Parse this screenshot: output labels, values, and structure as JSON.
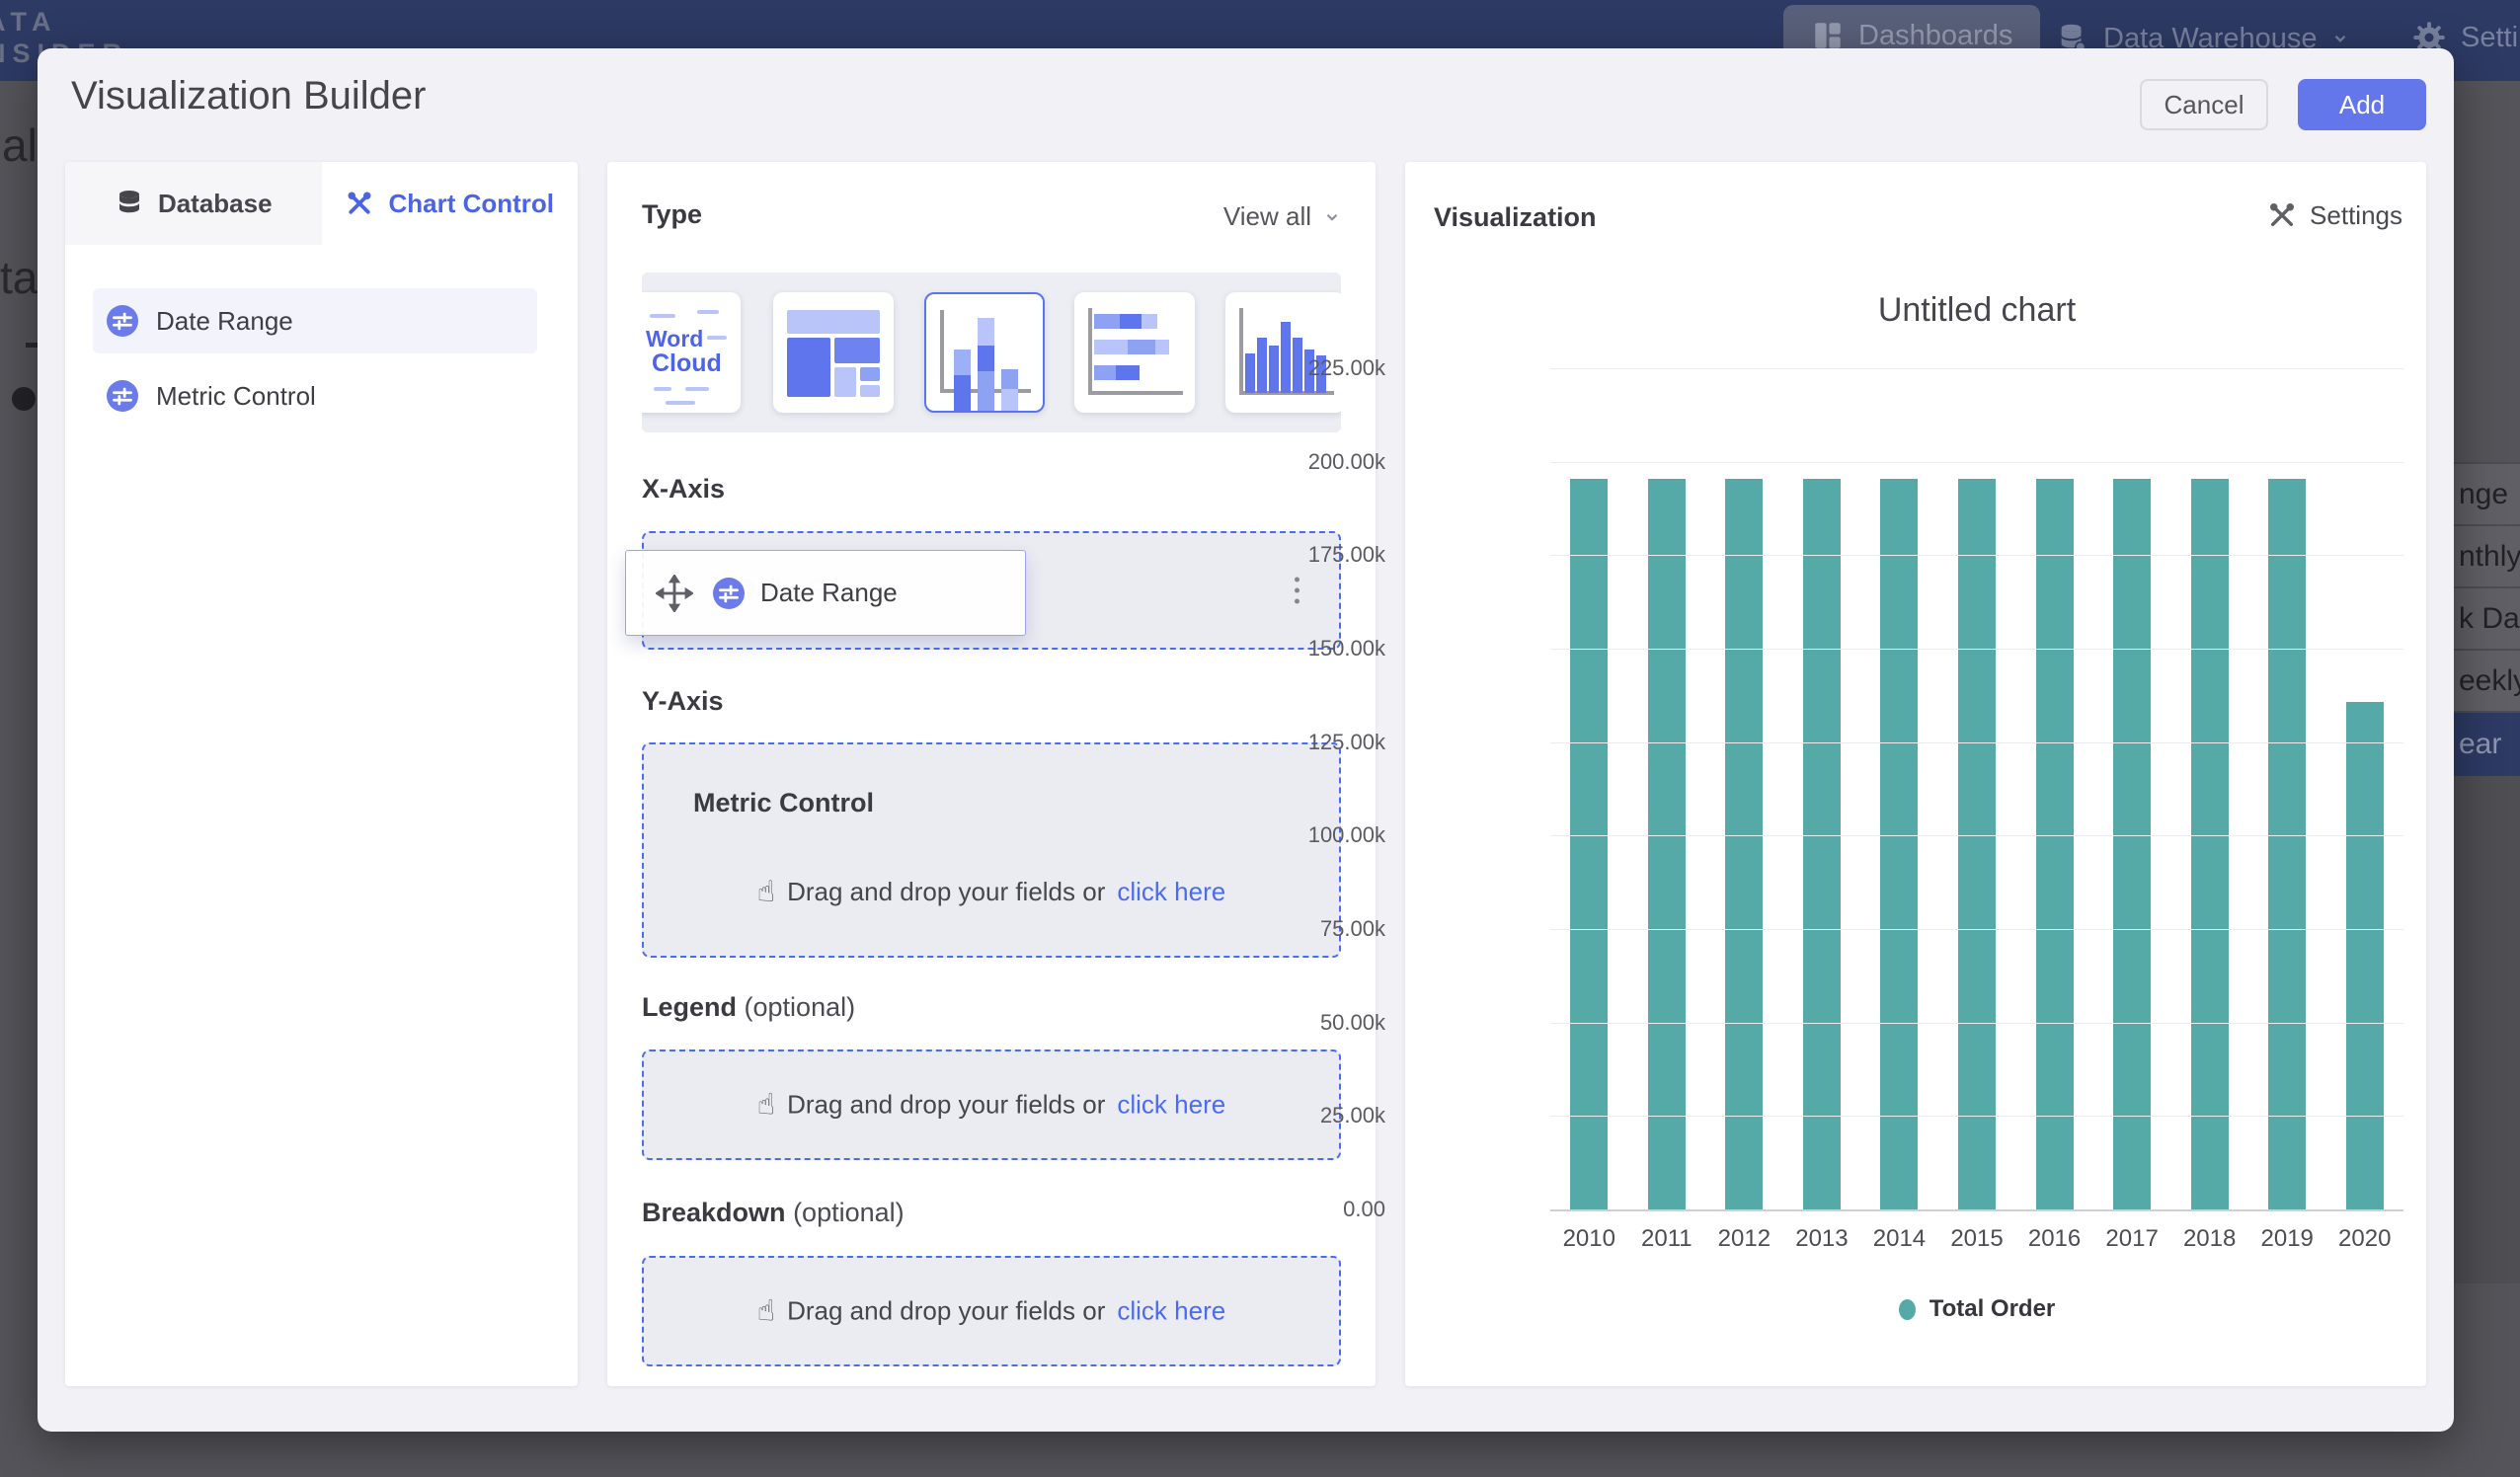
{
  "colors": {
    "accent_blue": "#4b6cf0",
    "primary_button": "#6377eb",
    "navbar": "#2d3a64",
    "bar_teal": "#55a9a7"
  },
  "navbar": {
    "logo_line1": "ATA",
    "logo_line2": "NSIDER",
    "items": [
      {
        "label": "Dashboards"
      },
      {
        "label": "Data Warehouse"
      },
      {
        "label": "Settings"
      }
    ]
  },
  "background": {
    "left_fragments": [
      "al",
      "ta"
    ],
    "right_menu": [
      "nge",
      "nthly",
      "k Date",
      "eekly",
      "ear"
    ],
    "right_menu_selected": "ear"
  },
  "modal": {
    "title": "Visualization Builder",
    "cancel_label": "Cancel",
    "add_label": "Add"
  },
  "left_panel": {
    "tabs": [
      {
        "label": "Database"
      },
      {
        "label": "Chart Control"
      }
    ],
    "active_tab": "Chart Control",
    "fields": [
      {
        "label": "Date Range"
      },
      {
        "label": "Metric Control"
      }
    ]
  },
  "builder": {
    "type_label": "Type",
    "view_all_label": "View all",
    "chart_types": [
      "word-cloud",
      "treemap",
      "stacked-column",
      "stacked-bar",
      "histogram"
    ],
    "selected_chart_type": "stacked-column",
    "word_cloud": {
      "word1": "Word",
      "word2": "Cloud"
    },
    "x_axis": {
      "label": "X-Axis",
      "chip_label": "Date Range",
      "ghost_label": "Date Range"
    },
    "y_axis": {
      "label": "Y-Axis",
      "box_title": "Metric Control"
    },
    "legend": {
      "label": "Legend",
      "optional": "(optional)"
    },
    "breakdown": {
      "label": "Breakdown",
      "optional": "(optional)"
    },
    "drop_text": "Drag and drop your fields or",
    "drop_link": "click here"
  },
  "viz": {
    "header": "Visualization",
    "settings_label": "Settings"
  },
  "chart_data": {
    "type": "bar",
    "title": "Untitled chart",
    "categories": [
      "2010",
      "2011",
      "2012",
      "2013",
      "2014",
      "2015",
      "2016",
      "2017",
      "2018",
      "2019",
      "2020"
    ],
    "series": [
      {
        "name": "Total Order",
        "values": [
          195300,
          195300,
          195300,
          195300,
          195300,
          195300,
          195300,
          195300,
          195300,
          195300,
          135800
        ]
      }
    ],
    "xlabel": "",
    "ylabel": "",
    "ylim": [
      0,
      225000
    ],
    "yticks": [
      "225.00k",
      "200.00k",
      "175.00k",
      "150.00k",
      "125.00k",
      "100.00k",
      "75.00k",
      "50.00k",
      "25.00k",
      "0.00"
    ],
    "grid": true,
    "legend_position": "bottom",
    "bar_color": "#55a9a7"
  }
}
